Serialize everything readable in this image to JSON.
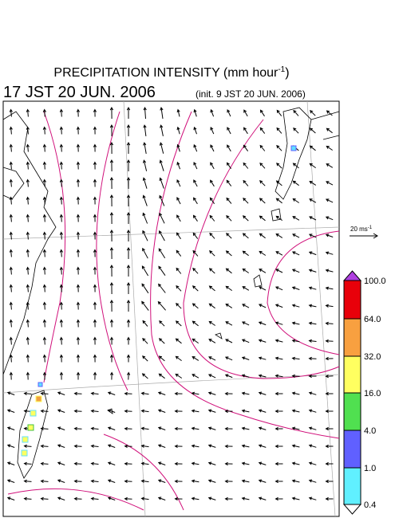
{
  "header": {
    "title": "PRECIPITATION INTENSITY (mm hour",
    "title_sup": "-1",
    "title_end": ")",
    "time": "17 JST 20 JUN. 2006",
    "init": "(init. 9 JST 20 JUN. 2006)"
  },
  "scale": {
    "label": "20 ms",
    "sup": "-1"
  },
  "colorbar": {
    "labels": [
      "100.0",
      "64.0",
      "32.0",
      "16.0",
      "4.0",
      "1.0",
      "0.4"
    ]
  }
}
